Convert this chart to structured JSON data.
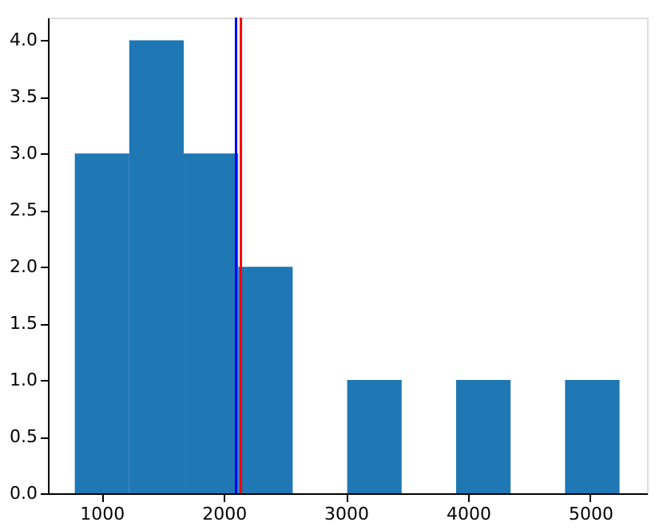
{
  "chart_data": {
    "type": "histogram",
    "bins": [
      780,
      1226,
      1672,
      2118,
      2564,
      3010,
      3456,
      3902,
      4348,
      4794,
      5240
    ],
    "values": [
      3,
      4,
      3,
      2,
      0,
      1,
      0,
      1,
      0,
      1
    ],
    "color": "#1f77b4",
    "xlim": [
      560,
      5465
    ],
    "xticks": [
      1000,
      2000,
      3000,
      4000,
      5000
    ],
    "ylim": [
      0,
      4.2
    ],
    "yticks": [
      {
        "value": 0,
        "label": "0.0"
      },
      {
        "value": 0.5,
        "label": "0.5"
      },
      {
        "value": 1,
        "label": "1.0"
      },
      {
        "value": 1.5,
        "label": "1.5"
      },
      {
        "value": 2,
        "label": "2.0"
      },
      {
        "value": 2.5,
        "label": "2.5"
      },
      {
        "value": 3,
        "label": "3.0"
      },
      {
        "value": 3.5,
        "label": "3.5"
      },
      {
        "value": 4,
        "label": "4.0"
      }
    ],
    "ref_lines": [
      {
        "axis": "x",
        "value": 2100,
        "color": "#0000ff"
      },
      {
        "axis": "x",
        "value": 2140,
        "color": "#ff0000"
      }
    ],
    "grid": false
  }
}
